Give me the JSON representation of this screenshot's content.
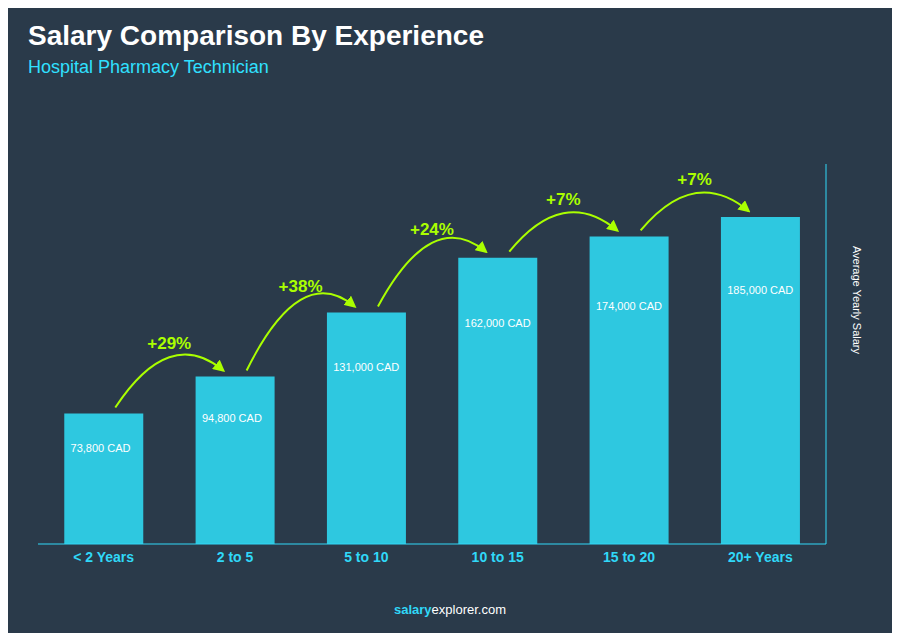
{
  "chart_data": {
    "type": "bar",
    "title": "Salary Comparison By Experience",
    "subtitle": "Hospital Pharmacy Technician",
    "categories": [
      "< 2 Years",
      "2 to 5",
      "5 to 10",
      "10 to 15",
      "15 to 20",
      "20+ Years"
    ],
    "values": [
      73800,
      94800,
      131000,
      162000,
      174000,
      185000
    ],
    "value_labels": [
      "73,800 CAD",
      "94,800 CAD",
      "131,000 CAD",
      "162,000 CAD",
      "174,000 CAD",
      "185,000 CAD"
    ],
    "data_labels": true,
    "annotations": [
      "+29%",
      "+38%",
      "+24%",
      "+7%",
      "+7%"
    ],
    "ylabel": "Average Yearly Salary",
    "watermark": [
      "salary",
      "explorer.com"
    ],
    "color": "#2ec8e0",
    "ylim": [
      0,
      215000
    ],
    "grid": false,
    "tick_labels": "x"
  }
}
